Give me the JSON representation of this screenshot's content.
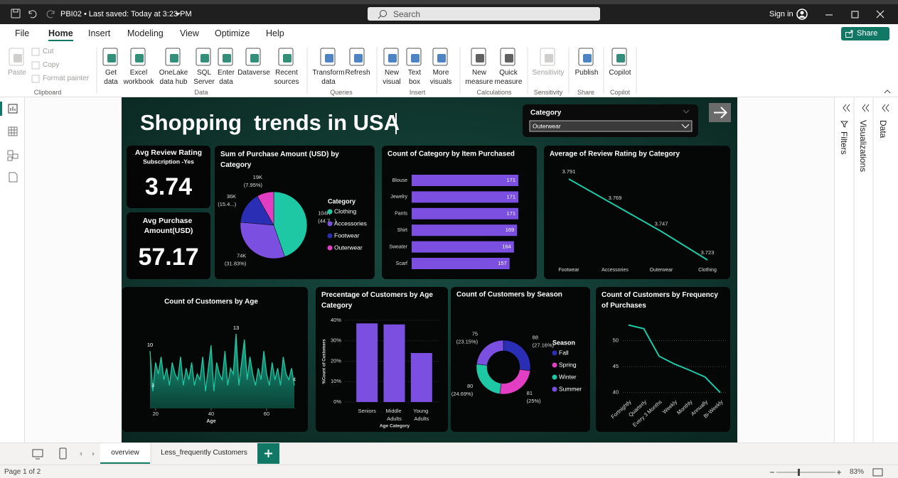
{
  "title_bar": {
    "document": "PBI02 • Last saved: Today at 3:23 PM",
    "search": "Search",
    "sign_in": "Sign in"
  },
  "menu": {
    "tabs": [
      "File",
      "Home",
      "Insert",
      "Modeling",
      "View",
      "Optimize",
      "Help"
    ],
    "share": "Share"
  },
  "ribbon": {
    "groups": [
      {
        "name": "Clipboard",
        "buttons": [
          "Paste",
          "Cut",
          "Copy",
          "Format painter"
        ]
      },
      {
        "name": "Data",
        "buttons": [
          "Get\ndata",
          "Excel\nworkbook",
          "OneLake\ndata hub",
          "SQL\nServer",
          "Enter\ndata",
          "Dataverse",
          "Recent\nsources"
        ]
      },
      {
        "name": "Queries",
        "buttons": [
          "Transform\ndata",
          "Refresh"
        ]
      },
      {
        "name": "Insert",
        "buttons": [
          "New\nvisual",
          "Text\nbox",
          "More\nvisuals"
        ]
      },
      {
        "name": "Calculations",
        "buttons": [
          "New\nmeasure",
          "Quick\nmeasure"
        ]
      },
      {
        "name": "Sensitivity",
        "buttons": [
          "Sensitivity"
        ]
      },
      {
        "name": "Share",
        "buttons": [
          "Publish"
        ]
      },
      {
        "name": "Copilot",
        "buttons": [
          "Copilot"
        ]
      }
    ]
  },
  "report": {
    "title": "Shopping  trends in USA",
    "slicer": {
      "label": "Category",
      "selected": "Outerwear"
    },
    "cards": [
      {
        "label": "Avg Review Rating",
        "sublabel": "Subscription -Yes",
        "value": 3.74
      },
      {
        "label": "Avg Purchase\nAmount(USD)",
        "value": 57.17
      }
    ],
    "charts": [
      {
        "type": "pie",
        "title": "Sum of Purchase Amount (USD) by\nCategory",
        "legend_title": "Category",
        "categories": [
          "Clothing",
          "Accessories",
          "Footwear",
          "Outerwear"
        ],
        "values": [
          104000,
          74000,
          36000,
          19000
        ],
        "value_labels": [
          "104K",
          "74K",
          "36K",
          "19K"
        ],
        "percent_labels": [
          "(44.7...)",
          "(31.83%)",
          "(15.4...)",
          "(7.95%)"
        ],
        "colors": [
          "#1ec8a4",
          "#7b4fe0",
          "#2a2eb5",
          "#e23ec4"
        ]
      },
      {
        "type": "bar",
        "orientation": "horizontal",
        "title": "Count of Category by Item Purchased",
        "categories": [
          "Blouse",
          "Jewelry",
          "Pants",
          "Shirt",
          "Sweater",
          "Scarf"
        ],
        "values": [
          171,
          171,
          171,
          169,
          164,
          157
        ],
        "color": "#7b4fe0",
        "data_labels": true
      },
      {
        "type": "line",
        "title": "Average of Review Rating by Category",
        "categories": [
          "Footwear",
          "Accessories",
          "Outerwear",
          "Clothing"
        ],
        "values": [
          3.791,
          3.769,
          3.747,
          3.723
        ],
        "color": "#1ec8a4",
        "data_labels": true
      },
      {
        "type": "area",
        "title": "Count of Customers by Age",
        "x_label": "Age",
        "x": [
          18,
          19,
          20,
          21,
          22,
          23,
          24,
          25,
          26,
          27,
          28,
          29,
          30,
          31,
          32,
          33,
          34,
          35,
          36,
          37,
          38,
          39,
          40,
          41,
          42,
          43,
          44,
          45,
          46,
          47,
          48,
          49,
          50,
          51,
          52,
          53,
          54,
          55,
          56,
          57,
          58,
          59,
          60,
          61,
          62,
          63,
          64,
          65,
          66,
          67,
          68,
          69,
          70
        ],
        "values": [
          10,
          3,
          8,
          6,
          9,
          5,
          7,
          4,
          8,
          6,
          5,
          9,
          4,
          7,
          5,
          8,
          4,
          6,
          5,
          9,
          3,
          7,
          11,
          3,
          8,
          6,
          5,
          10,
          4,
          7,
          6,
          13,
          4,
          8,
          12,
          5,
          9,
          6,
          4,
          7,
          5,
          10,
          6,
          4,
          8,
          5,
          7,
          4,
          9,
          6,
          5,
          7,
          4
        ],
        "xlim": [
          18,
          70
        ],
        "xticks": [
          20,
          40,
          60
        ],
        "color": "#1ec8a4",
        "data_labels": true
      },
      {
        "type": "bar",
        "orientation": "vertical",
        "title": "Precentage of Customers by Age\nCategory",
        "x_label": "Age Category",
        "y_label": "%Count of Customers",
        "categories": [
          "Seniors",
          "Middle\nAdults",
          "Young\nAdults"
        ],
        "values": [
          38.5,
          38,
          24
        ],
        "ylim": [
          0,
          40
        ],
        "yticks": [
          {
            "value": 0,
            "label": "0%"
          },
          {
            "value": 10,
            "label": "10%"
          },
          {
            "value": 20,
            "label": "20%"
          },
          {
            "value": 30,
            "label": "30%"
          },
          {
            "value": 40,
            "label": "40%"
          }
        ],
        "color": "#7b4fe0",
        "data_labels": false
      },
      {
        "type": "donut",
        "title": "Count of Customers by Season",
        "legend_title": "Season",
        "categories": [
          "Fall",
          "Spring",
          "Winter",
          "Summer"
        ],
        "values": [
          88,
          81,
          80,
          75
        ],
        "percent_labels": [
          "(27.16%)",
          "(25%)",
          "(24.69%)",
          "(23.15%)"
        ],
        "colors": [
          "#2a2eb5",
          "#e23ec4",
          "#1ec8a4",
          "#7b4fe0"
        ]
      },
      {
        "type": "line",
        "title": "Count of Customers by Frequency\nof Purchases",
        "categories": [
          "Fortnightly",
          "Quarterly",
          "Every 3 Months",
          "Weekly",
          "Monthly",
          "Annually",
          "Bi-Weekly"
        ],
        "values": [
          53,
          52.3,
          47,
          45.5,
          44.3,
          43,
          40
        ],
        "ylim": [
          39,
          55
        ],
        "yticks": [
          40,
          45,
          50
        ],
        "color": "#1ec8a4",
        "data_labels": false
      }
    ]
  },
  "panes": [
    "Filters",
    "Visualizations",
    "Data"
  ],
  "page_tabs": [
    "overview",
    "Less_frequently Customers"
  ],
  "status": {
    "page": "Page 1 of 2",
    "zoom": "83%"
  }
}
